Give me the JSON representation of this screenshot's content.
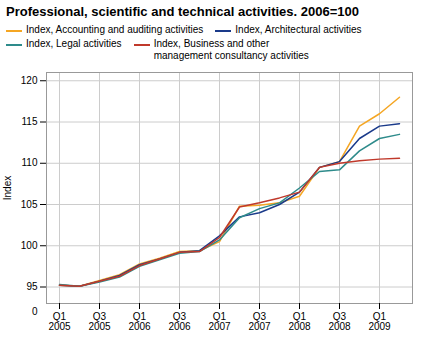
{
  "chart_data": {
    "type": "line",
    "title": "Professional, scientific and technical activities. 2006=100",
    "y_label": "Index",
    "categories": [
      "Q1\n2005",
      null,
      "Q3\n2005",
      null,
      "Q1\n2006",
      null,
      "Q3\n2006",
      null,
      "Q1\n2007",
      null,
      "Q3\n2007",
      null,
      "Q1\n2008",
      null,
      "Q3\n2008",
      null,
      "Q1\n2009",
      null
    ],
    "series": [
      {
        "name": "Index, Accounting and auditing activities",
        "color": "#f5a623",
        "values": [
          95.2,
          95.1,
          95.8,
          96.5,
          97.8,
          98.5,
          99.3,
          99.4,
          100.5,
          104.8,
          104.9,
          105.2,
          106.0,
          109.5,
          110.2,
          114.5,
          116.0,
          118.0
        ]
      },
      {
        "name": "Index, Architectural activities",
        "color": "#1a3a8a",
        "values": [
          95.2,
          95.1,
          95.7,
          96.4,
          97.7,
          98.4,
          99.2,
          99.4,
          101.2,
          103.5,
          104.0,
          105.0,
          106.5,
          109.5,
          110.2,
          113.0,
          114.5,
          114.8
        ]
      },
      {
        "name": "Index, Legal activities",
        "color": "#2e8b8b",
        "values": [
          95.3,
          95.1,
          95.6,
          96.2,
          97.5,
          98.3,
          99.1,
          99.3,
          100.7,
          103.4,
          104.5,
          105.2,
          107.0,
          109.0,
          109.2,
          111.5,
          113.0,
          113.5
        ]
      },
      {
        "name": "Index, Business and other\nmanagement consultancy activities",
        "color": "#c0392b",
        "values": [
          95.2,
          95.1,
          95.7,
          96.3,
          97.6,
          98.4,
          99.2,
          99.3,
          101.0,
          104.7,
          105.2,
          105.8,
          106.5,
          109.5,
          110.0,
          110.3,
          110.5,
          110.6
        ]
      }
    ],
    "ylim": [
      93,
      121
    ],
    "yticks": [
      95,
      100,
      105,
      110,
      115,
      120
    ],
    "grid": true,
    "legend": "upper left",
    "annotations": [
      {
        "text": "0"
      }
    ]
  }
}
